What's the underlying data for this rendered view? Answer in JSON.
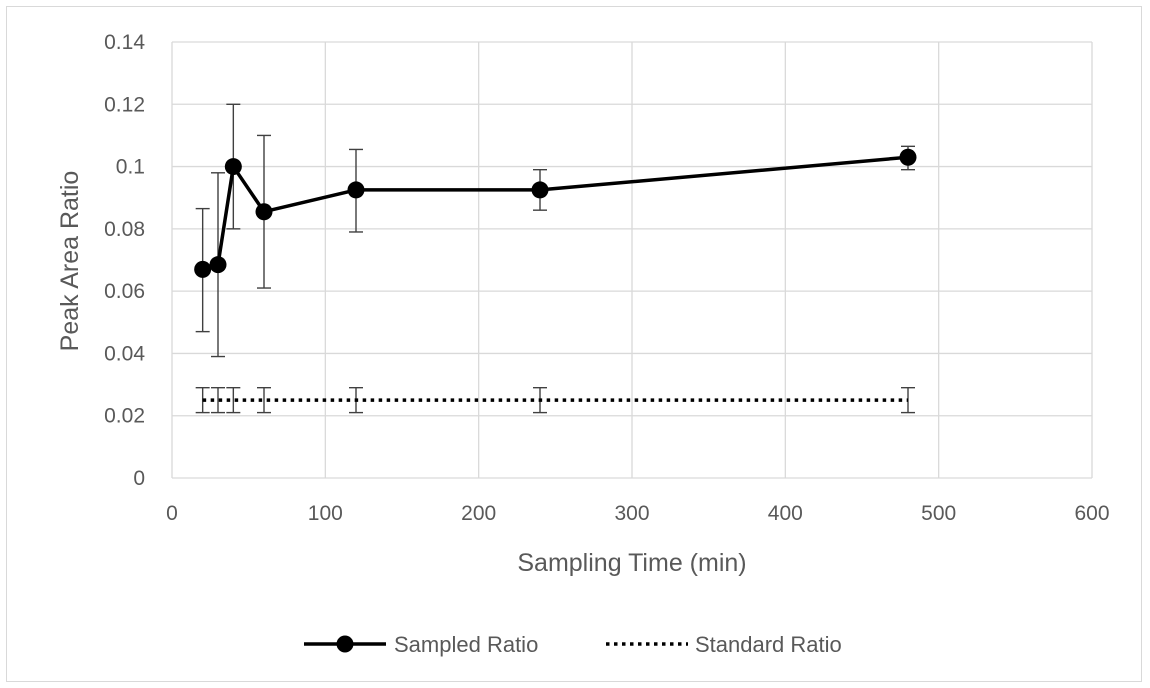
{
  "chart_data": {
    "type": "line",
    "title": "",
    "xlabel": "Sampling Time (min)",
    "ylabel": "Peak Area Ratio",
    "xlim": [
      0,
      600
    ],
    "ylim": [
      0,
      0.14
    ],
    "x_ticks": [
      "0",
      "100",
      "200",
      "300",
      "400",
      "500",
      "600"
    ],
    "y_ticks": [
      "0",
      "0.02",
      "0.04",
      "0.06",
      "0.08",
      "0.1",
      "0.12",
      "0.14"
    ],
    "grid": true,
    "legend_position": "bottom",
    "series": [
      {
        "name": "Sampled Ratio",
        "style": "solid-with-markers",
        "color": "#000000",
        "x": [
          20,
          30,
          40,
          60,
          120,
          240,
          480
        ],
        "y": [
          0.067,
          0.0685,
          0.1,
          0.0855,
          0.0925,
          0.0925,
          0.103
        ],
        "err_low": [
          0.047,
          0.039,
          0.08,
          0.061,
          0.079,
          0.086,
          0.099
        ],
        "err_high": [
          0.0865,
          0.098,
          0.12,
          0.11,
          0.1055,
          0.099,
          0.1065
        ]
      },
      {
        "name": "Standard Ratio",
        "style": "dotted",
        "color": "#000000",
        "x": [
          20,
          30,
          40,
          60,
          120,
          240,
          480
        ],
        "y": [
          0.025,
          0.025,
          0.025,
          0.025,
          0.025,
          0.025,
          0.025
        ],
        "err_low": [
          0.021,
          0.021,
          0.021,
          0.021,
          0.021,
          0.021,
          0.021
        ],
        "err_high": [
          0.029,
          0.029,
          0.029,
          0.029,
          0.029,
          0.029,
          0.029
        ]
      }
    ]
  }
}
